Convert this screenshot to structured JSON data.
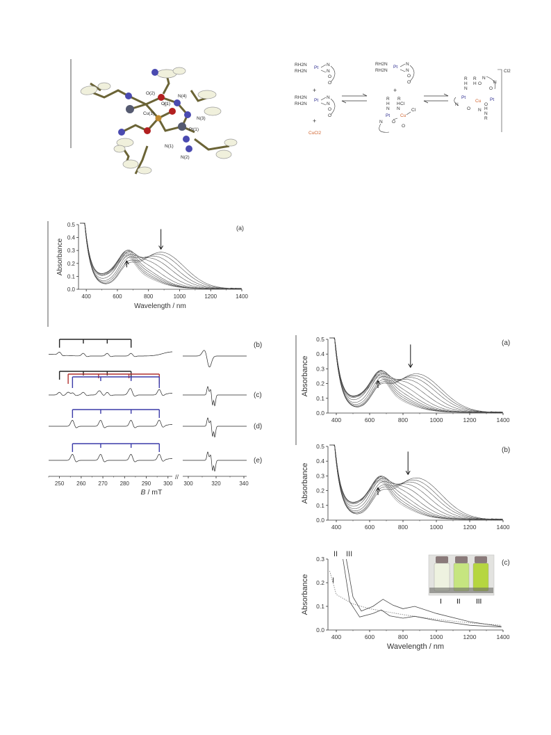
{
  "structure_labels": [
    "O(2)",
    "N(4)",
    "O(1)",
    "Cu(1)",
    "N(3)",
    "Pt(1)",
    "N(1)",
    "N(2)"
  ],
  "scheme": {
    "left_top": {
      "amines": [
        "RH2N",
        "RH2N"
      ],
      "metal": "Pt",
      "ligand": [
        "N",
        "N",
        "O",
        "O"
      ]
    },
    "plus1": "+",
    "left_mid": {
      "amines": [
        "RH2N",
        "RH2N"
      ],
      "metal": "Pt",
      "ligand": [
        "N",
        "N",
        "O",
        "O"
      ]
    },
    "plus2": "+",
    "left_bottom": "CuCl2",
    "mid_top": {
      "amines": [
        "RH2N",
        "RH2N"
      ],
      "metal": "Pt",
      "ligand": [
        "N",
        "N",
        "O",
        "O"
      ]
    },
    "plus3": "+",
    "mid_bottom": {
      "atoms": [
        "R",
        "H",
        "N",
        "R",
        "H",
        "Cl",
        "N",
        "Pt",
        "Cu",
        "Cl",
        "N",
        "O",
        "O"
      ]
    },
    "right": {
      "atoms": [
        "R",
        "H",
        "N",
        "R",
        "H",
        "O",
        "N",
        "O",
        "N",
        "Pt",
        "Cu",
        "Pt",
        "N",
        "O",
        "N",
        "O",
        "H",
        "N",
        "R"
      ],
      "counter_ion": "Cl2"
    }
  },
  "panel_labels": {
    "a": "(a)",
    "b": "(b)",
    "c": "(c)",
    "d": "(d)",
    "e": "(e)"
  },
  "chart_data": [
    {
      "type": "line",
      "id": "left_uvvis_a",
      "label": "(a)",
      "xlabel": "Wavelength / nm",
      "ylabel": "Absorbance",
      "xlim": [
        350,
        1400
      ],
      "ylim": [
        0,
        0.5
      ],
      "xticks": [
        400,
        600,
        800,
        1000,
        1200,
        1400
      ],
      "yticks": [
        0.0,
        0.1,
        0.2,
        0.3,
        0.4,
        0.5
      ],
      "ytick_labels": [
        "0.0",
        "0.1",
        "0.2",
        "0.3",
        "0.4",
        "0.5"
      ],
      "series_count": 11,
      "series_peak_wavelengths": [
        660,
        665,
        670,
        680,
        690,
        720,
        760,
        800,
        830,
        860,
        880
      ],
      "peak_absorbance_range": [
        0.13,
        0.28
      ],
      "arrows": [
        {
          "x": 660,
          "direction": "up"
        },
        {
          "x": 880,
          "direction": "down"
        }
      ]
    },
    {
      "type": "line",
      "id": "epr",
      "xlabel_italic": "B",
      "xlabel_rest": " / mT",
      "xticks_left": [
        250,
        260,
        270,
        280,
        290,
        300
      ],
      "xticks_right": [
        300,
        320,
        340
      ],
      "axis_break": "//",
      "traces": [
        {
          "label": "(b)",
          "hyperfine_lines": [
            [
              250,
              261,
              272,
              283
            ]
          ],
          "colors": [
            "#222222"
          ]
        },
        {
          "label": "(c)",
          "hyperfine_lines": [
            [
              250,
              261,
              272,
              283
            ],
            [
              254,
              268,
              282,
              296
            ],
            [
              256,
              269,
              283,
              296
            ]
          ],
          "colors": [
            "#222222",
            "#b0302e",
            "#3a3aa8"
          ]
        },
        {
          "label": "(d)",
          "hyperfine_lines": [
            [
              256,
              269,
              283,
              296
            ]
          ],
          "colors": [
            "#3a3aa8"
          ]
        },
        {
          "label": "(e)",
          "hyperfine_lines": [
            [
              256,
              269,
              283,
              296
            ]
          ],
          "colors": [
            "#3a3aa8"
          ]
        }
      ]
    },
    {
      "type": "line",
      "id": "right_uvvis_a",
      "label": "(a)",
      "ylabel": "Absorbance",
      "xlim": [
        350,
        1400
      ],
      "ylim": [
        0,
        0.5
      ],
      "xticks": [
        400,
        600,
        800,
        1000,
        1200,
        1400
      ],
      "yticks": [
        0.0,
        0.1,
        0.2,
        0.3,
        0.4,
        0.5
      ],
      "ytick_labels": [
        "0.0",
        "0.1",
        "0.2",
        "0.3",
        "0.4",
        "0.5"
      ],
      "series_count": 12,
      "series_peak_wavelengths": [
        650,
        655,
        665,
        675,
        690,
        710,
        740,
        780,
        815,
        845,
        865,
        880
      ],
      "peak_absorbance_range": [
        0.12,
        0.26
      ],
      "arrows": [
        {
          "x": 650,
          "direction": "up"
        },
        {
          "x": 845,
          "direction": "down"
        }
      ]
    },
    {
      "type": "line",
      "id": "right_uvvis_b",
      "label": "(b)",
      "ylabel": "Absorbance",
      "xlim": [
        350,
        1400
      ],
      "ylim": [
        0,
        0.5
      ],
      "xticks": [
        400,
        600,
        800,
        1000,
        1200,
        1400
      ],
      "yticks": [
        0.0,
        0.1,
        0.2,
        0.3,
        0.4,
        0.5
      ],
      "ytick_labels": [
        "0.0",
        "0.1",
        "0.2",
        "0.3",
        "0.4",
        "0.5"
      ],
      "series_count": 11,
      "series_peak_wavelengths": [
        660,
        665,
        675,
        690,
        710,
        740,
        775,
        810,
        840,
        860,
        880
      ],
      "peak_absorbance_range": [
        0.14,
        0.28
      ],
      "arrows": [
        {
          "x": 650,
          "direction": "up"
        },
        {
          "x": 830,
          "direction": "down"
        }
      ]
    },
    {
      "type": "line",
      "id": "right_uvvis_c",
      "label": "(c)",
      "xlabel": "Wavelength / nm",
      "ylabel": "Absorbance",
      "xlim": [
        350,
        1400
      ],
      "ylim": [
        0,
        0.3
      ],
      "xticks": [
        400,
        600,
        800,
        1000,
        1200,
        1400
      ],
      "yticks": [
        0.0,
        0.1,
        0.2,
        0.3
      ],
      "ytick_labels": [
        "0.0",
        "0.1",
        "0.2",
        "0.3"
      ],
      "series": [
        {
          "name": "I",
          "style": "dotted",
          "points": [
            [
              360,
              0.25
            ],
            [
              400,
              0.15
            ],
            [
              500,
              0.11
            ],
            [
              600,
              0.09
            ],
            [
              800,
              0.065
            ],
            [
              1000,
              0.045
            ],
            [
              1200,
              0.03
            ],
            [
              1390,
              0.02
            ]
          ]
        },
        {
          "name": "II",
          "style": "solid",
          "points": [
            [
              440,
              0.3
            ],
            [
              480,
              0.12
            ],
            [
              540,
              0.055
            ],
            [
              620,
              0.07
            ],
            [
              670,
              0.085
            ],
            [
              720,
              0.06
            ],
            [
              800,
              0.05
            ],
            [
              870,
              0.058
            ],
            [
              1000,
              0.04
            ],
            [
              1200,
              0.02
            ],
            [
              1390,
              0.012
            ]
          ]
        },
        {
          "name": "III",
          "style": "solid",
          "points": [
            [
              460,
              0.3
            ],
            [
              500,
              0.14
            ],
            [
              550,
              0.08
            ],
            [
              620,
              0.1
            ],
            [
              680,
              0.13
            ],
            [
              740,
              0.105
            ],
            [
              800,
              0.09
            ],
            [
              870,
              0.1
            ],
            [
              1000,
              0.07
            ],
            [
              1200,
              0.035
            ],
            [
              1390,
              0.015
            ]
          ]
        }
      ],
      "inset_labels": [
        "I",
        "II",
        "III"
      ]
    }
  ]
}
